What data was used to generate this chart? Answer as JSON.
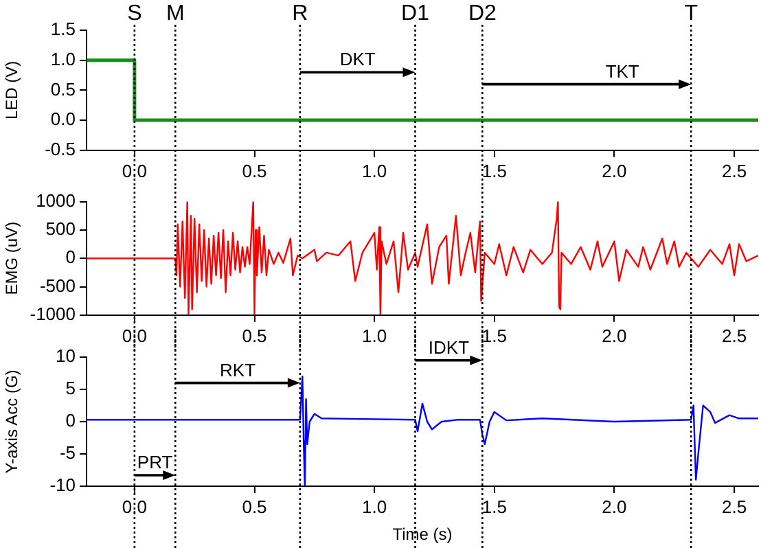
{
  "chart_data": [
    {
      "type": "step",
      "ylabel": "LED (V)",
      "xlim": [
        -0.2,
        2.6
      ],
      "xticks": [
        {
          "value": 0,
          "label": "0.0"
        },
        0.5,
        {
          "value": 1,
          "label": "1.0"
        },
        1.5,
        {
          "value": 2,
          "label": "2.0"
        },
        2.5
      ],
      "ylim": [
        -0.5,
        1.5
      ],
      "yticks": [
        -0.5,
        {
          "value": 0,
          "label": "0.0"
        },
        0.5,
        {
          "value": 1,
          "label": "1.0"
        },
        1.5
      ],
      "grid": false,
      "legend": false,
      "marker": "none",
      "line_style": "solid",
      "series": [
        {
          "color": "#1a8c1a",
          "x": [
            -0.2,
            0,
            2.6
          ],
          "values": [
            1,
            0,
            0
          ]
        }
      ],
      "ref_lines": [
        {
          "axis": "x",
          "value": 0,
          "label": "S"
        },
        {
          "axis": "x",
          "value": 0.17,
          "label": "M"
        },
        {
          "axis": "x",
          "value": 0.69,
          "label": "R"
        },
        {
          "axis": "x",
          "value": 1.17,
          "label": "D1"
        },
        {
          "axis": "x",
          "value": 1.45,
          "label": "D2"
        },
        {
          "axis": "x",
          "value": 2.32,
          "label": "T"
        }
      ],
      "annotations": [
        {
          "text": "DKT",
          "x": 1.17,
          "y": 0.8
        },
        {
          "text": "TKT",
          "x": 2.32,
          "y": 0.6
        }
      ]
    },
    {
      "type": "line",
      "ylabel": "EMG (uV)",
      "xlim": [
        -0.2,
        2.6
      ],
      "xticks": [
        {
          "value": 0,
          "label": "0.0"
        },
        0.5,
        {
          "value": 1,
          "label": "1.0"
        },
        1.5,
        {
          "value": 2,
          "label": "2.0"
        },
        2.5
      ],
      "ylim": [
        -1000,
        1000
      ],
      "yticks": [
        -1000,
        -500,
        0,
        500,
        1000
      ],
      "grid": false,
      "legend": false,
      "marker": "none",
      "line_style": "solid",
      "series": [
        {
          "color": "#ff0000",
          "x": [
            -0.2,
            0,
            0.17,
            0.175,
            0.18,
            0.19,
            0.2,
            0.21,
            0.22,
            0.225,
            0.235,
            0.24,
            0.25,
            0.26,
            0.27,
            0.28,
            0.29,
            0.3,
            0.31,
            0.32,
            0.33,
            0.34,
            0.35,
            0.36,
            0.37,
            0.38,
            0.39,
            0.4,
            0.41,
            0.42,
            0.43,
            0.44,
            0.45,
            0.46,
            0.47,
            0.48,
            0.495,
            0.5,
            0.505,
            0.51,
            0.52,
            0.53,
            0.54,
            0.55,
            0.56,
            0.58,
            0.6,
            0.62,
            0.65,
            0.66,
            0.68,
            0.7,
            0.75,
            0.76,
            0.8,
            0.85,
            0.9,
            0.92,
            0.95,
            1.0,
            1.01,
            1.02,
            1.025,
            1.03,
            1.05,
            1.08,
            1.1,
            1.12,
            1.14,
            1.17,
            1.18,
            1.22,
            1.24,
            1.27,
            1.3,
            1.31,
            1.34,
            1.36,
            1.38,
            1.4,
            1.42,
            1.44,
            1.445,
            1.46,
            1.5,
            1.52,
            1.55,
            1.58,
            1.62,
            1.65,
            1.7,
            1.74,
            1.76,
            1.765,
            1.77,
            1.775,
            1.78,
            1.82,
            1.86,
            1.9,
            1.93,
            1.95,
            2.0,
            2.02,
            2.05,
            2.1,
            2.12,
            2.15,
            2.2,
            2.22,
            2.25,
            2.27,
            2.3,
            2.35,
            2.4,
            2.45,
            2.48,
            2.5,
            2.52,
            2.55,
            2.6
          ],
          "values": [
            0,
            0,
            0,
            -300,
            600,
            -500,
            650,
            -700,
            1000,
            -1000,
            750,
            -900,
            700,
            -600,
            600,
            -400,
            500,
            -500,
            350,
            -450,
            400,
            -300,
            450,
            -350,
            500,
            -600,
            300,
            -300,
            450,
            -200,
            300,
            -250,
            200,
            -150,
            200,
            -100,
            1000,
            -1000,
            500,
            -300,
            550,
            -250,
            400,
            -300,
            150,
            -100,
            100,
            -80,
            350,
            -300,
            50,
            0,
            150,
            -50,
            100,
            50,
            300,
            -400,
            100,
            450,
            -200,
            550,
            -1000,
            300,
            -100,
            300,
            -600,
            450,
            -200,
            100,
            -150,
            600,
            -450,
            200,
            400,
            -450,
            750,
            -300,
            100,
            450,
            -250,
            650,
            -750,
            100,
            -100,
            250,
            -300,
            200,
            -250,
            150,
            -100,
            100,
            700,
            1000,
            -850,
            -900,
            100,
            -100,
            200,
            -200,
            300,
            -150,
            300,
            -400,
            150,
            -150,
            200,
            -200,
            350,
            -100,
            300,
            -150,
            100,
            -150,
            150,
            -100,
            250,
            -300,
            250,
            -50,
            50
          ]
        }
      ],
      "ref_lines": [
        {
          "axis": "x",
          "value": 0
        },
        {
          "axis": "x",
          "value": 0.17
        },
        {
          "axis": "x",
          "value": 0.69
        },
        {
          "axis": "x",
          "value": 1.17
        },
        {
          "axis": "x",
          "value": 1.45
        },
        {
          "axis": "x",
          "value": 2.32
        }
      ]
    },
    {
      "type": "line",
      "ylabel": "Y-axis Acc (G)",
      "xlabel": "Time (s)",
      "xlim": [
        -0.2,
        2.6
      ],
      "xticks": [
        {
          "value": 0,
          "label": "0.0"
        },
        0.5,
        {
          "value": 1,
          "label": "1.0"
        },
        1.5,
        {
          "value": 2,
          "label": "2.0"
        },
        2.5
      ],
      "ylim": [
        -10,
        10
      ],
      "yticks": [
        -10,
        -5,
        0,
        5,
        10
      ],
      "grid": false,
      "legend": false,
      "marker": "none",
      "line_style": "solid",
      "series": [
        {
          "color": "#0000ff",
          "x": [
            -0.2,
            0.69,
            0.7,
            0.705,
            0.71,
            0.715,
            0.72,
            0.73,
            0.75,
            0.78,
            1.17,
            1.18,
            1.2,
            1.22,
            1.24,
            1.28,
            1.35,
            1.44,
            1.45,
            1.46,
            1.48,
            1.5,
            1.55,
            1.7,
            2.0,
            2.32,
            2.33,
            2.34,
            2.35,
            2.37,
            2.4,
            2.42,
            2.48,
            2.52,
            2.6
          ],
          "values": [
            0.3,
            0.3,
            7,
            -3,
            -10,
            3.5,
            -3.5,
            0,
            1.2,
            0.5,
            0.3,
            -1.5,
            2.8,
            0,
            -1.2,
            0,
            0.3,
            0.3,
            -2,
            -3.5,
            0,
            1.5,
            0.2,
            0.5,
            0,
            0.3,
            2.5,
            -9,
            -5,
            2.5,
            1.5,
            -0.2,
            1,
            0.5,
            0.5
          ]
        }
      ],
      "ref_lines": [
        {
          "axis": "x",
          "value": 0
        },
        {
          "axis": "x",
          "value": 0.17
        },
        {
          "axis": "x",
          "value": 0.69
        },
        {
          "axis": "x",
          "value": 1.17
        },
        {
          "axis": "x",
          "value": 1.45
        },
        {
          "axis": "x",
          "value": 2.32
        }
      ],
      "annotations": [
        {
          "text": "RKT",
          "x": 0.69,
          "y": 6
        },
        {
          "text": "IDKT",
          "x": 1.45,
          "y": 9.5
        },
        {
          "text": "PRT",
          "x": 0.17,
          "y": -8.3
        }
      ]
    }
  ]
}
